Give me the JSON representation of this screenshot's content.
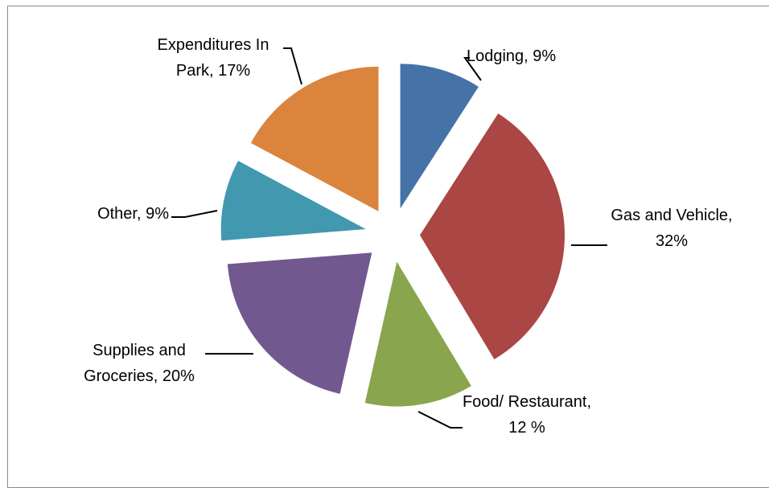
{
  "chart_data": {
    "type": "pie",
    "values": [
      9,
      32,
      12,
      20,
      9,
      17
    ],
    "value_labels": [
      "Lodging, 9%",
      "Gas and Vehicle, 32%",
      "Food/ Restaurant, 12 %",
      "Supplies and Groceries, 20%",
      "Other, 9%",
      "Expenditures In Park, 17%"
    ],
    "colors": [
      "#4572a7",
      "#aa4643",
      "#89a54e",
      "#71588f",
      "#4198af",
      "#db843d"
    ],
    "exploded": true
  }
}
